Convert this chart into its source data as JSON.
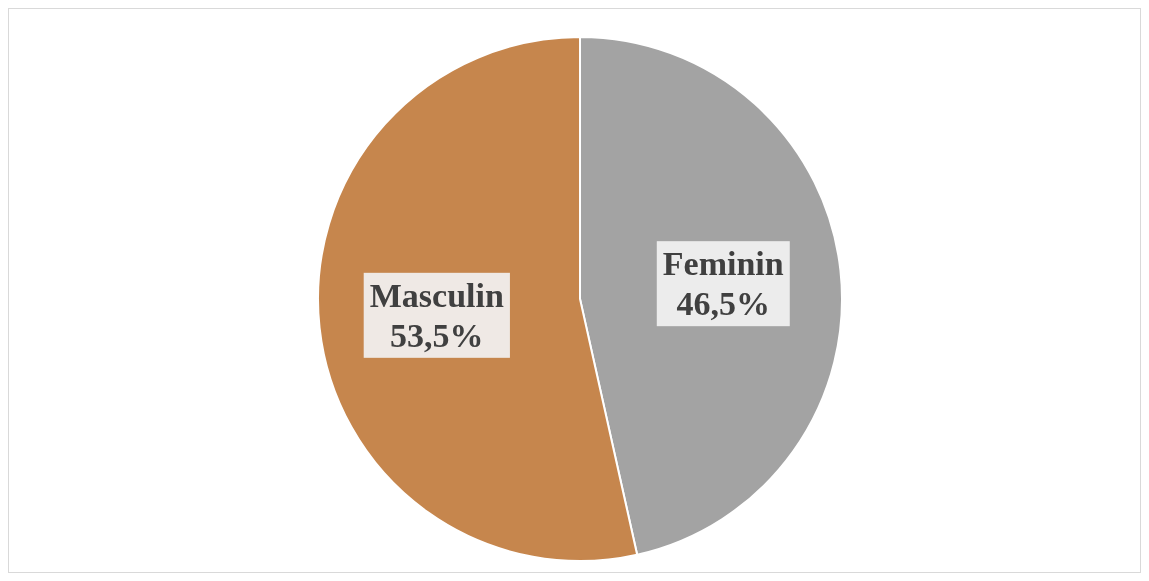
{
  "chart_data": {
    "type": "pie",
    "categories": [
      "Feminin",
      "Masculin"
    ],
    "values": [
      46.5,
      53.5
    ],
    "value_labels": [
      "46,5%",
      "53,5%"
    ],
    "colors": [
      "#a3a3a3",
      "#c6864d"
    ]
  }
}
